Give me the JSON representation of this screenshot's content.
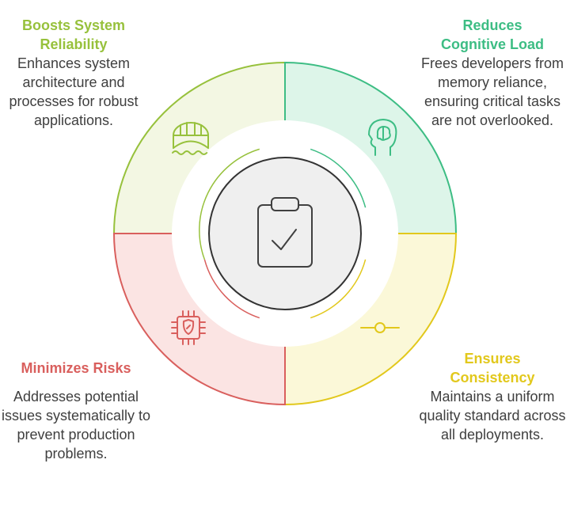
{
  "center": {
    "icon": "clipboard-check-icon"
  },
  "segments": [
    {
      "id": "boosts",
      "title": "Boosts System Reliability",
      "title_lines": [
        "Boosts System",
        "Reliability"
      ],
      "description": "Enhances system architecture and processes for robust applications.",
      "icon": "bridge-icon",
      "color": "#97c13c",
      "fill": "#f3f7e3"
    },
    {
      "id": "reduces",
      "title": "Reduces Cognitive Load",
      "title_lines": [
        "Reduces",
        "Cognitive Load"
      ],
      "description": "Frees developers from memory reliance, ensuring critical tasks are not overlooked.",
      "icon": "brain-head-icon",
      "color": "#3dbd84",
      "fill": "#ddf5e9"
    },
    {
      "id": "ensures",
      "title": "Ensures Consistency",
      "title_lines": [
        "Ensures",
        "Consistency"
      ],
      "description": "Maintains a uniform quality standard across all deployments.",
      "icon": "slider-icon",
      "color": "#e2c81c",
      "fill": "#fbf8d8"
    },
    {
      "id": "minimizes",
      "title": "Minimizes Risks",
      "title_lines": [
        "Minimizes Risks"
      ],
      "description": "Addresses potential issues systematically to prevent production problems.",
      "icon": "shield-chip-icon",
      "color": "#d95f5d",
      "fill": "#fbe4e3"
    }
  ]
}
